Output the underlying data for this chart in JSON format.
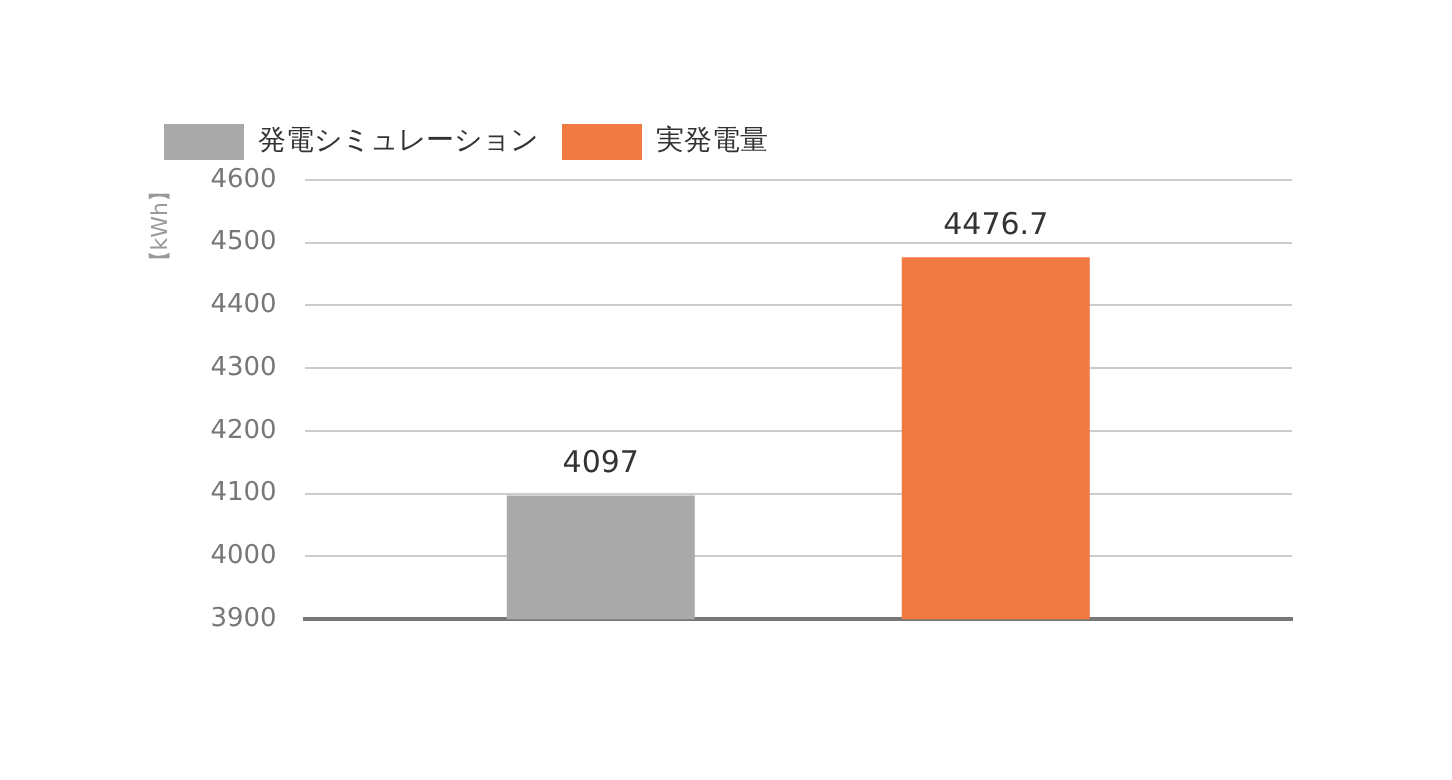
{
  "chart_data": {
    "type": "bar",
    "ylabel": "【kWh】",
    "categories": [
      null
    ],
    "series": [
      {
        "name": "発電シミュレーション",
        "color": "#aaaaaa",
        "values": [
          4097
        ]
      },
      {
        "name": "実発電量",
        "color": "#f07a42",
        "values": [
          4476.7
        ]
      }
    ],
    "ylim": [
      3900,
      4600
    ],
    "yticks": [
      3900,
      4000,
      4100,
      4200,
      4300,
      4400,
      4500,
      4600
    ],
    "grid": "y",
    "legend": "top left",
    "data_labels": true
  }
}
